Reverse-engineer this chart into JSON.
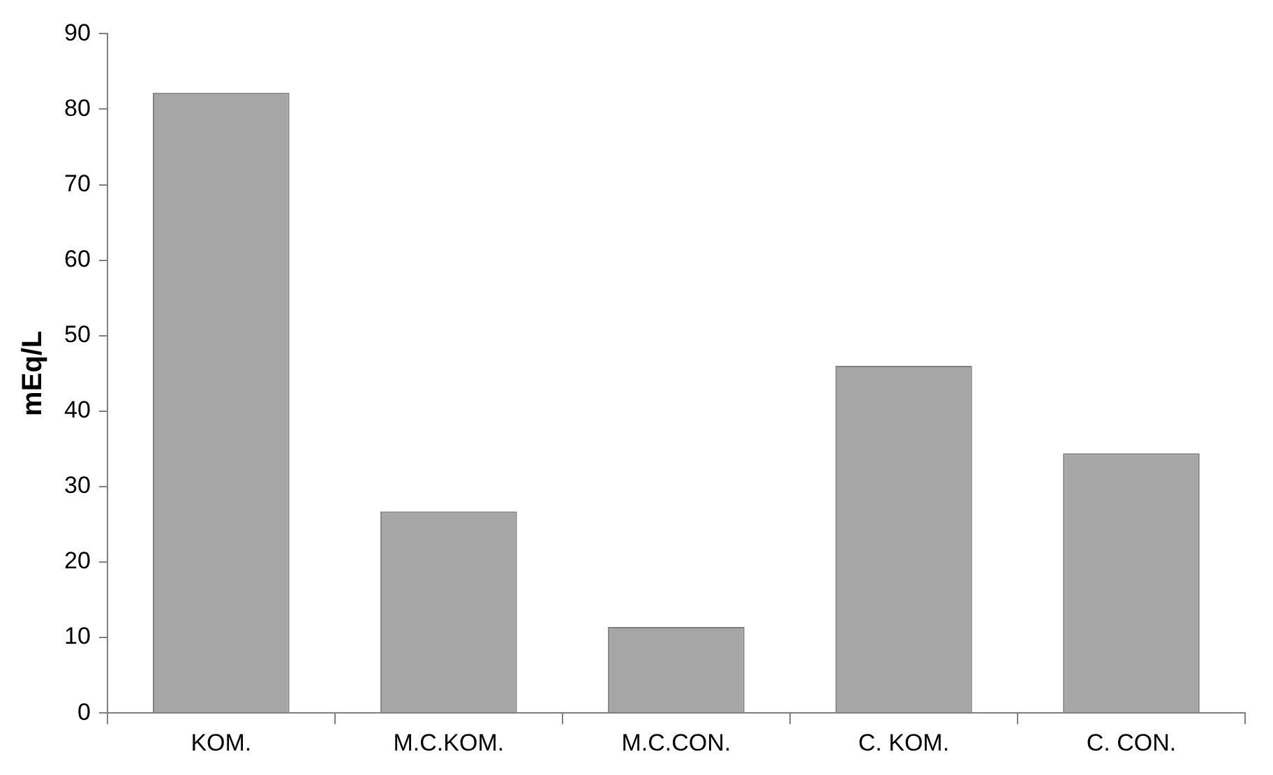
{
  "chart_data": {
    "type": "bar",
    "ylabel": "mEq/L",
    "categories": [
      "KOM.",
      "M.C.KOM.",
      "M.C.CON.",
      "C. KOM.",
      "C. CON."
    ],
    "values": [
      82.2,
      26.7,
      11.4,
      46.0,
      34.4
    ],
    "color": "#a6a6a6",
    "ylim": [
      0,
      90
    ],
    "yticks": [
      0,
      10,
      20,
      30,
      40,
      50,
      60,
      70,
      80,
      90
    ],
    "grid": false,
    "legend": false
  }
}
